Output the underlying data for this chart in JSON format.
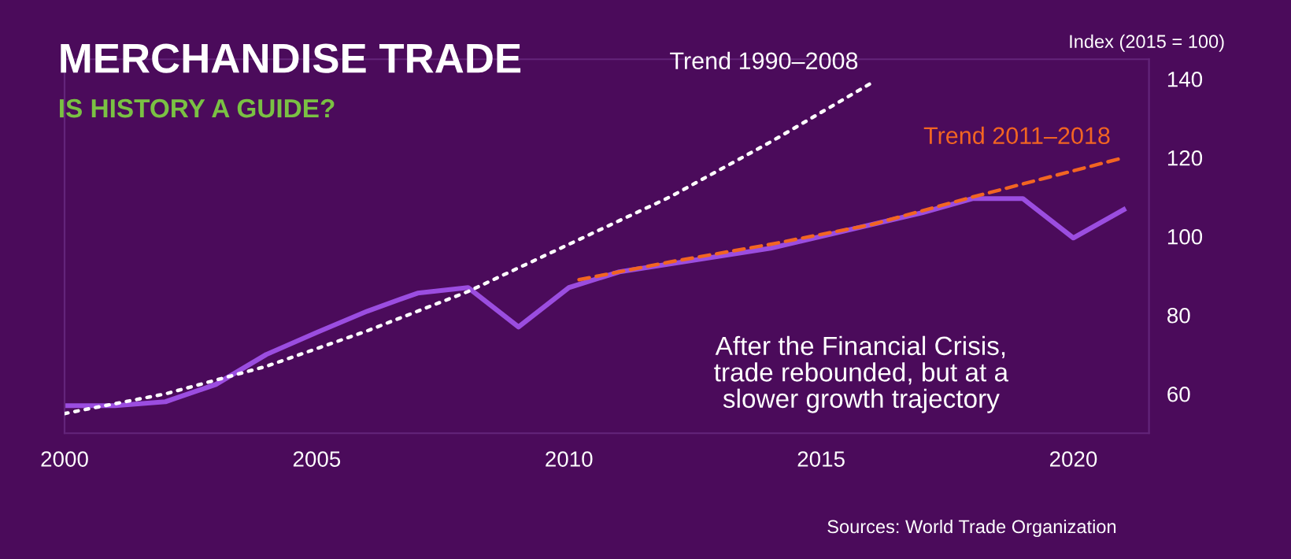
{
  "chart_data": {
    "type": "line",
    "title": "MERCHANDISE TRADE",
    "subtitle": "IS HISTORY A GUIDE?",
    "ylabel": "Index (2015 = 100)",
    "annotations": [
      "After the Financial Crisis,\ntrade rebounded, but at a\nslower growth trajectory",
      "Sources: World Trade Organization"
    ],
    "xlim": [
      2000,
      2021.5
    ],
    "xticks": [
      2000,
      2005,
      2010,
      2015,
      2020
    ],
    "ylim": [
      50,
      145
    ],
    "yticks": [
      60,
      80,
      100,
      120,
      140
    ],
    "grid": false,
    "legend": false,
    "marker": "none",
    "series": [
      {
        "name": "Trend 1990–2008",
        "color": "#ffffff",
        "line_style": "dotted",
        "x": [
          2000,
          2002,
          2004,
          2006,
          2008,
          2010,
          2012,
          2014,
          2016
        ],
        "values": [
          55,
          60,
          67,
          76,
          86,
          98,
          110,
          124,
          139
        ]
      },
      {
        "name": "Trend 2011–2018",
        "color": "#f26522",
        "line_style": "dashed",
        "x": [
          2010.2,
          2012,
          2014,
          2016,
          2018,
          2021
        ],
        "values": [
          89,
          93.5,
          98,
          103,
          110,
          120
        ]
      },
      {
        "color": "#9b4de0",
        "line_style": "solid",
        "x": [
          2000,
          2001,
          2002,
          2003,
          2004,
          2005,
          2006,
          2007,
          2008,
          2009,
          2010,
          2011,
          2012,
          2013,
          2014,
          2015,
          2016,
          2017,
          2018,
          2019,
          2020,
          2021
        ],
        "values": [
          57,
          57,
          58,
          62.4,
          70,
          75.6,
          81,
          85.6,
          87,
          77,
          87,
          91,
          93,
          95,
          97,
          100,
          103,
          106,
          109.6,
          109.6,
          99.6,
          106.8
        ]
      }
    ]
  }
}
